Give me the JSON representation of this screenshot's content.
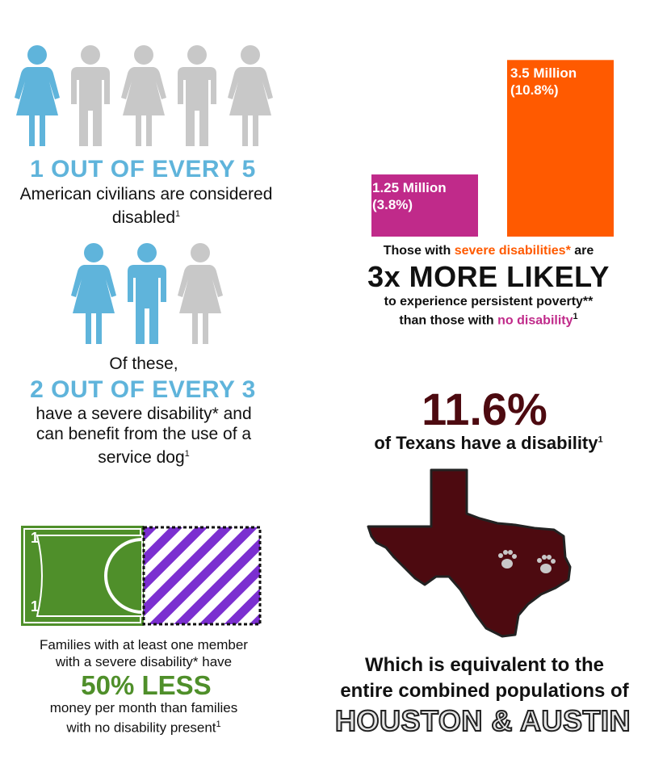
{
  "colors": {
    "blue": "#5fb4db",
    "gray": "#c8c8c8",
    "magenta": "#c02a8a",
    "orange": "#ff5a00",
    "maroon": "#4d0a10",
    "green": "#4f8f2a",
    "purple": "#7b2fd0"
  },
  "section1": {
    "headline": "1 OUT OF EVERY 5",
    "text": "American civilians are considered",
    "text2": "disabled",
    "footnote": "1"
  },
  "section2": {
    "intro": "Of these,",
    "headline": "2 OUT OF EVERY 3",
    "line1": "have a severe disability* and",
    "line2": "can benefit from the use of a",
    "line3": "service dog",
    "footnote": "1"
  },
  "money": {
    "bill_one_1": "1",
    "bill_one_2": "1",
    "line1": "Families with at least one member",
    "line2": "with a severe disability* have",
    "headline": "50% LESS",
    "line3": "money per month than families",
    "line4": "with no disability present",
    "footnote": "1"
  },
  "chart_data": {
    "type": "bar",
    "categories": [
      "no disability",
      "severe disabilities"
    ],
    "values": [
      3.8,
      10.8
    ],
    "labels": [
      "1.25 Million\n(3.8%)",
      "3.5 Million\n(10.8%)"
    ],
    "ylim": [
      0,
      12
    ]
  },
  "poverty": {
    "line1_a": "Those with ",
    "line1_b": "severe disabilities*",
    "line1_c": " are",
    "headline": "3x MORE LIKELY",
    "line2": "to experience persistent poverty**",
    "line3_a": "than those with ",
    "line3_b": "no disability",
    "footnote": "1"
  },
  "texas": {
    "stat": "11.6%",
    "text": "of Texans have a disability",
    "footnote": "1",
    "line1": "Which is equivalent to the",
    "line2": "entire combined populations of",
    "cities": "HOUSTON & AUSTIN"
  }
}
